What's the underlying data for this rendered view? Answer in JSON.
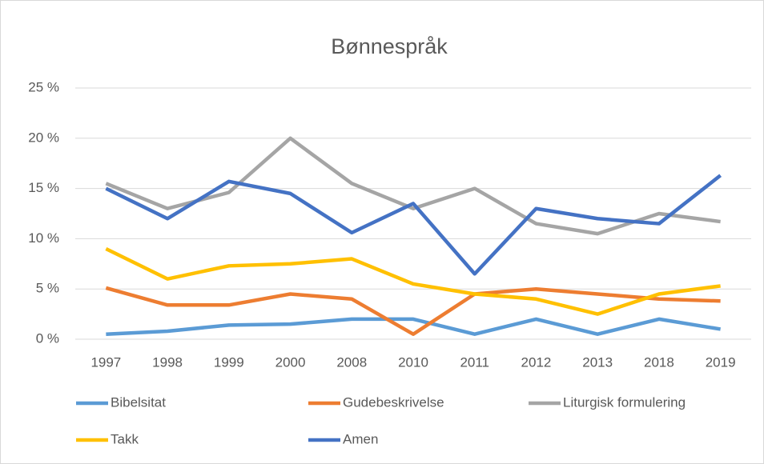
{
  "chart_data": {
    "type": "line",
    "title": "Bønnespråk",
    "categories": [
      "1997",
      "1998",
      "1999",
      "2000",
      "2008",
      "2010",
      "2011",
      "2012",
      "2013",
      "2018",
      "2019"
    ],
    "series": [
      {
        "name": "Bibelsitat",
        "color": "#5b9bd5",
        "values": [
          0.5,
          0.8,
          1.4,
          1.5,
          2,
          2,
          0.5,
          2,
          0.5,
          2,
          1.0
        ]
      },
      {
        "name": "Gudebeskrivelse",
        "color": "#ed7d31",
        "values": [
          5.1,
          3.4,
          3.4,
          4.5,
          4,
          0.5,
          4.5,
          5,
          4.5,
          4,
          3.8
        ]
      },
      {
        "name": "Liturgisk formulering",
        "color": "#a5a5a5",
        "values": [
          15.5,
          13,
          14.6,
          20,
          15.5,
          13,
          15,
          11.5,
          10.5,
          12.5,
          11.7
        ]
      },
      {
        "name": "Takk",
        "color": "#ffc000",
        "values": [
          9,
          6,
          7.3,
          7.5,
          8,
          5.5,
          4.5,
          4,
          2.5,
          4.5,
          5.3
        ]
      },
      {
        "name": "Amen",
        "color": "#4472c4",
        "values": [
          15,
          12,
          15.7,
          14.5,
          10.6,
          13.5,
          6.5,
          13,
          12,
          11.5,
          16.3
        ]
      }
    ],
    "ylim": [
      0,
      25
    ],
    "yticks": [
      {
        "value": 0,
        "label": "0 %"
      },
      {
        "value": 5,
        "label": "5 %"
      },
      {
        "value": 10,
        "label": "10 %"
      },
      {
        "value": 15,
        "label": "15 %"
      },
      {
        "value": 20,
        "label": "20 %"
      },
      {
        "value": 25,
        "label": "25 %"
      }
    ],
    "grid": true,
    "legend": "bottom"
  }
}
